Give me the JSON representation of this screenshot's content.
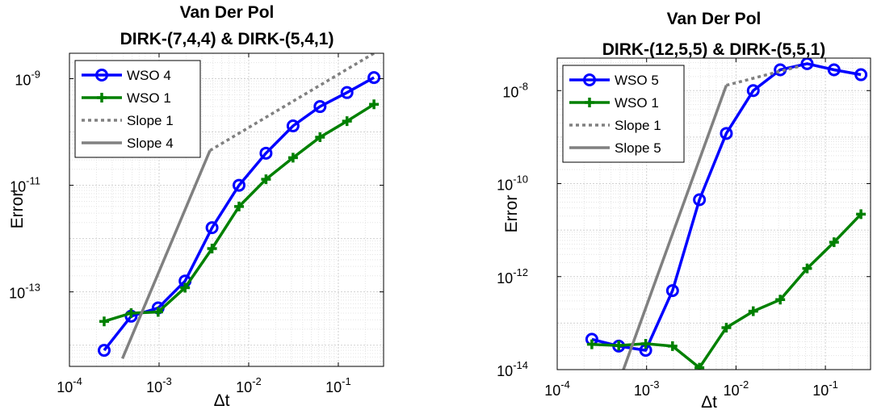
{
  "chart_data": [
    {
      "type": "line",
      "title": "Van Der Pol",
      "subtitle": "DIRK-(7,4,4) & DIRK-(5,4,1)",
      "xlabel": "Δt",
      "ylabel": "Error",
      "xscale": "log",
      "yscale": "log",
      "xlim": [
        0.0001,
        0.32
      ],
      "ylim": [
        4e-15,
        3e-09
      ],
      "grid": true,
      "legend_position": "top-left",
      "xticks": [
        {
          "value": 0.0001,
          "base": "10",
          "exp": "-4"
        },
        {
          "value": 0.001,
          "base": "10",
          "exp": "-3"
        },
        {
          "value": 0.01,
          "base": "10",
          "exp": "-2"
        },
        {
          "value": 0.1,
          "base": "10",
          "exp": "-1"
        }
      ],
      "yticks": [
        {
          "value": 1e-13,
          "base": "10",
          "exp": "-13"
        },
        {
          "value": 1e-11,
          "base": "10",
          "exp": "-11"
        },
        {
          "value": 1e-09,
          "base": "10",
          "exp": "-9"
        }
      ],
      "series": [
        {
          "name": "WSO 4",
          "color": "#0000ff",
          "marker": "circle",
          "dash": "solid",
          "x": [
            0.000244,
            0.000488,
            0.000977,
            0.00195,
            0.0039,
            0.0078,
            0.0156,
            0.03125,
            0.0625,
            0.125,
            0.25
          ],
          "y": [
            8e-15,
            3.5e-14,
            5e-14,
            1.6e-13,
            1.6e-12,
            1e-11,
            4e-11,
            1.3e-10,
            3e-10,
            5.5e-10,
            1.05e-09
          ]
        },
        {
          "name": "WSO 1",
          "color": "#008000",
          "marker": "plus",
          "dash": "solid",
          "x": [
            0.000244,
            0.000488,
            0.000977,
            0.00195,
            0.0039,
            0.0078,
            0.0156,
            0.03125,
            0.0625,
            0.125,
            0.25
          ],
          "y": [
            2.8e-14,
            4e-14,
            4.2e-14,
            1.2e-13,
            6.5e-13,
            4e-12,
            1.3e-11,
            3.3e-11,
            8e-11,
            1.6e-10,
            3.3e-10
          ]
        },
        {
          "name": "Slope 1",
          "color": "#808080",
          "marker": "none",
          "dash": "dotted",
          "x": [
            0.0037,
            0.25
          ],
          "y": [
            4.5e-11,
            3e-09
          ]
        },
        {
          "name": "Slope 4",
          "color": "#808080",
          "marker": "none",
          "dash": "solid",
          "x": [
            0.00039,
            0.0037
          ],
          "y": [
            5.6e-15,
            4.5e-11
          ]
        }
      ]
    },
    {
      "type": "line",
      "title": "Van Der Pol",
      "subtitle": "DIRK-(12,5,5) & DIRK-(5,5,1)",
      "xlabel": "Δt",
      "ylabel": "Error",
      "xscale": "log",
      "yscale": "log",
      "xlim": [
        0.0001,
        0.32
      ],
      "ylim": [
        1e-14,
        5e-08
      ],
      "grid": true,
      "legend_position": "top-left",
      "xticks": [
        {
          "value": 0.0001,
          "base": "10",
          "exp": "-4"
        },
        {
          "value": 0.001,
          "base": "10",
          "exp": "-3"
        },
        {
          "value": 0.01,
          "base": "10",
          "exp": "-2"
        },
        {
          "value": 0.1,
          "base": "10",
          "exp": "-1"
        }
      ],
      "yticks": [
        {
          "value": 1e-14,
          "base": "10",
          "exp": "-14"
        },
        {
          "value": 1e-12,
          "base": "10",
          "exp": "-12"
        },
        {
          "value": 1e-10,
          "base": "10",
          "exp": "-10"
        },
        {
          "value": 1e-08,
          "base": "10",
          "exp": "-8"
        }
      ],
      "series": [
        {
          "name": "WSO 5",
          "color": "#0000ff",
          "marker": "circle",
          "dash": "solid",
          "x": [
            0.000244,
            0.000488,
            0.000977,
            0.00195,
            0.0039,
            0.0078,
            0.0156,
            0.03125,
            0.0625,
            0.125,
            0.25
          ],
          "y": [
            4.5e-14,
            3.2e-14,
            2.6e-14,
            5e-13,
            4.5e-11,
            1.2e-09,
            1e-08,
            2.8e-08,
            3.8e-08,
            2.8e-08,
            2.2e-08
          ]
        },
        {
          "name": "WSO 1",
          "color": "#008000",
          "marker": "plus",
          "dash": "solid",
          "x": [
            0.000244,
            0.000488,
            0.000977,
            0.00195,
            0.0039,
            0.0078,
            0.0156,
            0.03125,
            0.0625,
            0.125,
            0.25
          ],
          "y": [
            3.5e-14,
            3.3e-14,
            3.6e-14,
            3.2e-14,
            1.1e-14,
            8e-14,
            1.8e-13,
            3.2e-13,
            1.5e-12,
            5.5e-12,
            2.2e-11
          ]
        },
        {
          "name": "Slope 1",
          "color": "#808080",
          "marker": "none",
          "dash": "dotted",
          "x": [
            0.0078,
            0.05
          ],
          "y": [
            1.3e-08,
            3.3e-08
          ]
        },
        {
          "name": "Slope 5",
          "color": "#808080",
          "marker": "none",
          "dash": "solid",
          "x": [
            0.00055,
            0.0078
          ],
          "y": [
            1e-14,
            1.3e-08
          ]
        }
      ]
    }
  ]
}
